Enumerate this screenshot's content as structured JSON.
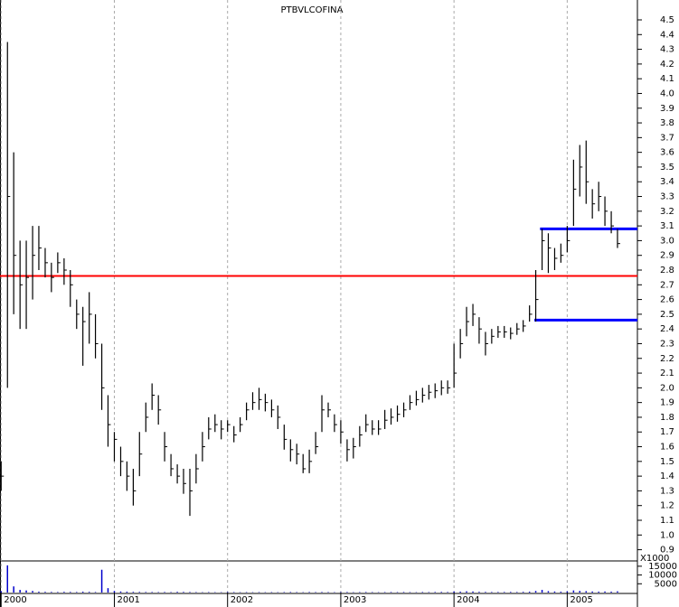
{
  "chart_data": {
    "type": "ohlc",
    "title": "PTBVLCOFINA",
    "x": [
      2000,
      2000.056,
      2000.111,
      2000.167,
      2000.222,
      2000.278,
      2000.333,
      2000.389,
      2000.444,
      2000.5,
      2000.556,
      2000.611,
      2000.667,
      2000.722,
      2000.778,
      2000.833,
      2000.889,
      2000.944,
      2001,
      2001.056,
      2001.111,
      2001.167,
      2001.222,
      2001.278,
      2001.333,
      2001.389,
      2001.444,
      2001.5,
      2001.556,
      2001.611,
      2001.667,
      2001.722,
      2001.778,
      2001.833,
      2001.889,
      2001.944,
      2002,
      2002.056,
      2002.111,
      2002.167,
      2002.222,
      2002.278,
      2002.333,
      2002.389,
      2002.444,
      2002.5,
      2002.556,
      2002.611,
      2002.667,
      2002.722,
      2002.778,
      2002.833,
      2002.889,
      2002.944,
      2003,
      2003.056,
      2003.111,
      2003.167,
      2003.222,
      2003.278,
      2003.333,
      2003.389,
      2003.444,
      2003.5,
      2003.556,
      2003.611,
      2003.667,
      2003.722,
      2003.778,
      2003.833,
      2003.889,
      2003.944,
      2004,
      2004.056,
      2004.111,
      2004.167,
      2004.222,
      2004.278,
      2004.333,
      2004.389,
      2004.444,
      2004.5,
      2004.556,
      2004.611,
      2004.667,
      2004.722,
      2004.778,
      2004.833,
      2004.889,
      2004.944,
      2005,
      2005.056,
      2005.111,
      2005.167,
      2005.222,
      2005.278,
      2005.333,
      2005.389,
      2005.444
    ],
    "high": [
      1.5,
      4.35,
      3.6,
      3.0,
      3.0,
      3.1,
      3.1,
      2.95,
      2.85,
      2.92,
      2.88,
      2.8,
      2.6,
      2.55,
      2.65,
      2.5,
      2.3,
      1.95,
      1.7,
      1.6,
      1.5,
      1.45,
      1.7,
      1.9,
      2.03,
      1.95,
      1.7,
      1.55,
      1.48,
      1.45,
      1.45,
      1.55,
      1.7,
      1.8,
      1.82,
      1.78,
      1.78,
      1.74,
      1.8,
      1.9,
      1.97,
      2.0,
      1.96,
      1.92,
      1.88,
      1.75,
      1.65,
      1.62,
      1.55,
      1.58,
      1.7,
      1.95,
      1.9,
      1.82,
      1.78,
      1.65,
      1.66,
      1.74,
      1.82,
      1.78,
      1.78,
      1.85,
      1.86,
      1.88,
      1.9,
      1.95,
      1.98,
      2.0,
      2.02,
      2.03,
      2.05,
      2.05,
      2.3,
      2.4,
      2.55,
      2.57,
      2.48,
      2.38,
      2.4,
      2.42,
      2.42,
      2.41,
      2.44,
      2.46,
      2.56,
      2.8,
      3.08,
      3.05,
      2.95,
      2.98,
      3.1,
      3.55,
      3.65,
      3.68,
      3.35,
      3.4,
      3.3,
      3.2,
      3.08
    ],
    "low": [
      1.3,
      2.0,
      2.5,
      2.4,
      2.4,
      2.6,
      2.8,
      2.75,
      2.65,
      2.78,
      2.7,
      2.55,
      2.4,
      2.15,
      2.3,
      2.2,
      1.85,
      1.6,
      1.5,
      1.4,
      1.3,
      1.2,
      1.4,
      1.7,
      1.85,
      1.75,
      1.5,
      1.4,
      1.35,
      1.28,
      1.13,
      1.35,
      1.5,
      1.65,
      1.7,
      1.65,
      1.7,
      1.63,
      1.7,
      1.78,
      1.85,
      1.85,
      1.84,
      1.8,
      1.72,
      1.58,
      1.5,
      1.48,
      1.42,
      1.42,
      1.55,
      1.7,
      1.8,
      1.7,
      1.62,
      1.5,
      1.52,
      1.6,
      1.7,
      1.68,
      1.68,
      1.72,
      1.75,
      1.77,
      1.8,
      1.85,
      1.88,
      1.9,
      1.92,
      1.93,
      1.95,
      1.96,
      2.0,
      2.2,
      2.35,
      2.42,
      2.3,
      2.22,
      2.3,
      2.34,
      2.34,
      2.33,
      2.36,
      2.38,
      2.45,
      2.45,
      2.8,
      2.78,
      2.8,
      2.85,
      2.92,
      3.1,
      3.3,
      3.25,
      3.15,
      3.2,
      3.1,
      3.05,
      2.95
    ],
    "close": [
      1.4,
      3.3,
      2.9,
      2.7,
      2.75,
      2.9,
      2.95,
      2.85,
      2.75,
      2.85,
      2.8,
      2.7,
      2.5,
      2.45,
      2.5,
      2.3,
      2.0,
      1.75,
      1.65,
      1.5,
      1.4,
      1.3,
      1.55,
      1.8,
      1.95,
      1.85,
      1.6,
      1.45,
      1.4,
      1.35,
      1.3,
      1.45,
      1.6,
      1.72,
      1.75,
      1.72,
      1.75,
      1.68,
      1.75,
      1.85,
      1.9,
      1.92,
      1.9,
      1.85,
      1.8,
      1.65,
      1.58,
      1.55,
      1.45,
      1.5,
      1.6,
      1.85,
      1.85,
      1.75,
      1.7,
      1.58,
      1.6,
      1.68,
      1.75,
      1.72,
      1.72,
      1.78,
      1.8,
      1.82,
      1.85,
      1.9,
      1.92,
      1.95,
      1.97,
      1.98,
      2.0,
      2.0,
      2.1,
      2.3,
      2.45,
      2.5,
      2.4,
      2.3,
      2.35,
      2.38,
      2.38,
      2.37,
      2.4,
      2.42,
      2.5,
      2.6,
      3.0,
      2.95,
      2.88,
      2.9,
      3.0,
      3.35,
      3.5,
      3.4,
      3.25,
      3.3,
      3.2,
      3.1,
      2.98
    ],
    "volume": [
      800,
      15500,
      3500,
      1500,
      1200,
      900,
      500,
      400,
      350,
      300,
      400,
      350,
      300,
      500,
      400,
      300,
      13000,
      2500,
      900,
      600,
      500,
      400,
      350,
      300,
      300,
      250,
      300,
      250,
      400,
      350,
      300,
      250,
      200,
      250,
      200,
      200,
      300,
      250,
      200,
      250,
      200,
      250,
      200,
      250,
      200,
      250,
      300,
      250,
      200,
      300,
      250,
      300,
      250,
      200,
      250,
      300,
      200,
      250,
      300,
      250,
      200,
      250,
      300,
      250,
      300,
      250,
      200,
      300,
      250,
      300,
      350,
      300,
      600,
      500,
      700,
      600,
      400,
      350,
      300,
      300,
      300,
      350,
      300,
      400,
      500,
      900,
      1500,
      800,
      600,
      500,
      700,
      1200,
      900,
      800,
      600,
      500,
      600,
      500,
      700
    ],
    "bar_color": "#000000",
    "volume_color": "#0000cc",
    "xlim": [
      1999.99,
      2005.62
    ],
    "xticks": [
      2000,
      2001,
      2002,
      2003,
      2004,
      2005
    ],
    "ylim": [
      0.83,
      4.635
    ],
    "yticks": [
      0.9,
      {
        "value": 1,
        "label": "1.0"
      },
      1.1,
      1.2,
      1.3,
      1.4,
      1.5,
      1.6,
      1.7,
      1.8,
      1.9,
      {
        "value": 2,
        "label": "2.0"
      },
      2.1,
      2.2,
      2.3,
      2.4,
      2.5,
      2.6,
      2.7,
      2.8,
      2.9,
      {
        "value": 3,
        "label": "3.0"
      },
      3.1,
      3.2,
      3.3,
      3.4,
      3.5,
      3.6,
      3.7,
      3.8,
      3.9,
      {
        "value": 4,
        "label": "4.0"
      },
      4.1,
      4.2,
      4.3,
      4.4,
      4.5
    ],
    "volume_ylim": [
      0,
      17500
    ],
    "volume_yticks": [
      5000,
      10000,
      15000
    ],
    "volume_unit_label": "X1000",
    "levels": [
      {
        "value": 2.76,
        "color": "#ff0000",
        "x_start": 1999.99
      },
      {
        "value": 3.08,
        "color": "#0000ff",
        "x_start": 2004.76
      },
      {
        "value": 2.46,
        "color": "#0000ff",
        "x_start": 2004.71
      }
    ],
    "grid": true
  }
}
